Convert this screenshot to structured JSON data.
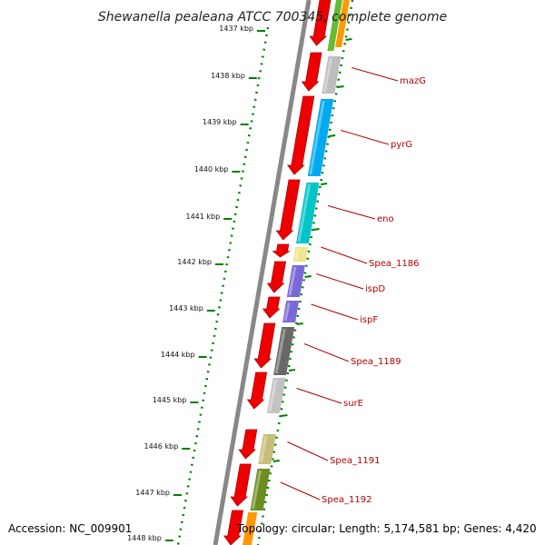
{
  "title": "Shewanella pealeana ATCC 700345, complete genome",
  "footer": {
    "accession": "Accession: NC_009901",
    "summary": "Topology: circular; Length: 5,174,581 bp; Genes: 4,420"
  },
  "ticks": [
    "1437 kbp",
    "1438 kbp",
    "1439 kbp",
    "1440 kbp",
    "1441 kbp",
    "1442 kbp",
    "1443 kbp",
    "1444 kbp",
    "1445 kbp",
    "1446 kbp",
    "1447 kbp",
    "1448 kbp"
  ],
  "genes": [
    {
      "label": "mazG",
      "color": "#bdbdbd"
    },
    {
      "label": "pyrG",
      "color": "#00aaf0"
    },
    {
      "label": "eno",
      "color": "#00c4c8"
    },
    {
      "label": "Spea_1186",
      "color": "#eee68a"
    },
    {
      "label": "ispD",
      "color": "#7b68d8"
    },
    {
      "label": "ispF",
      "color": "#7b68d8"
    },
    {
      "label": "Spea_1189",
      "color": "#686868"
    },
    {
      "label": "surE",
      "color": "#c2c2c2"
    },
    {
      "label": "Spea_1191",
      "color": "#c7be7a"
    },
    {
      "label": "Spea_1192",
      "color": "#6b8e23"
    }
  ],
  "colors": {
    "cds_strand": "#ee0000",
    "backbone": "#888888",
    "tick": "#008000",
    "label": "#b30000"
  }
}
